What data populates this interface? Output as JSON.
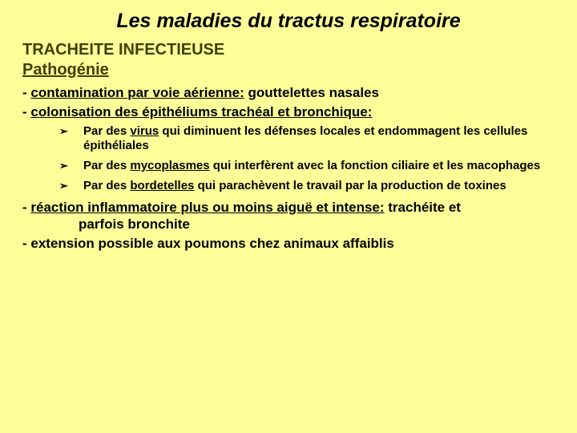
{
  "colors": {
    "background": "#ffff99",
    "title_text": "#000000",
    "subtitle_text": "#404000",
    "body_text": "#000000"
  },
  "typography": {
    "title_fontsize_pt": 25,
    "subtitle_fontsize_pt": 20,
    "body_fontsize_pt": 17,
    "bullet_fontsize_pt": 15,
    "font_family": "Arial",
    "title_italic": true,
    "all_bold": true
  },
  "title": "Les maladies du tractus respiratoire",
  "subtitle1": "TRACHEITE INFECTIEUSE",
  "subtitle2": "Pathogénie",
  "line1_prefix": "- ",
  "line1_u": "contamination par voie aérienne:",
  "line1_rest": " gouttelettes nasales",
  "line2_prefix": "- ",
  "line2_u": "colonisation des épithéliums trachéal et bronchique:",
  "bullet_marker": "➢",
  "b1_a": "Par des ",
  "b1_u": "virus",
  "b1_b": " qui diminuent les défenses locales et endommagent les cellules épithéliales",
  "b2_a": "Par des ",
  "b2_u": "mycoplasmes",
  "b2_b": " qui interfèrent avec la fonction ciliaire et les macophages",
  "b3_a": "Par des ",
  "b3_u": "bordetelles",
  "b3_b": " qui parachèvent le travail par la production de toxines",
  "p3_prefix": "- ",
  "p3_u": "réaction inflammatoire plus ou moins aiguë et intense:",
  "p3_rest_a": " trachéite et ",
  "p3_rest_b": "parfois bronchite",
  "p4": "- extension possible aux poumons chez animaux affaiblis"
}
